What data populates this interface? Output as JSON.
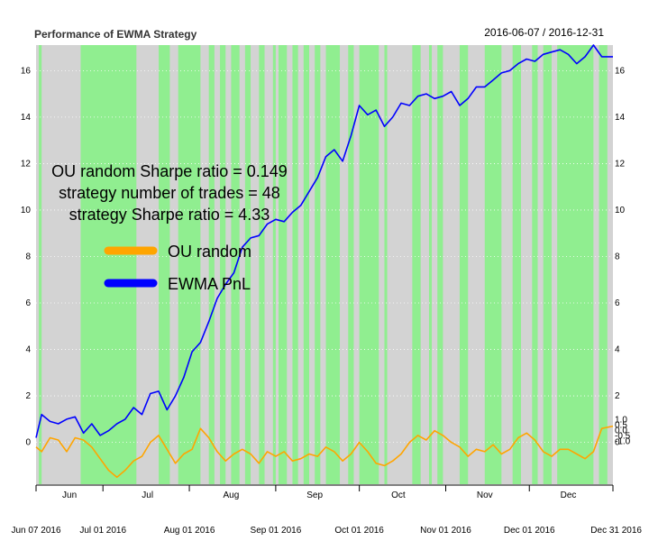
{
  "chart_data": {
    "type": "line",
    "title": "Performance of EWMA Strategy",
    "date_range": "2016-06-07 / 2016-12-31",
    "ylim": [
      -1.8,
      17.1
    ],
    "y_ticks": [
      0,
      2,
      4,
      6,
      8,
      10,
      12,
      14,
      16
    ],
    "x_range": [
      "2016-06-07",
      "2016-12-31"
    ],
    "month_labels": [
      {
        "label": "Jun",
        "date": "2016-06-19"
      },
      {
        "label": "Jul",
        "date": "2016-07-17"
      },
      {
        "label": "Aug",
        "date": "2016-08-16"
      },
      {
        "label": "Sep",
        "date": "2016-09-15"
      },
      {
        "label": "Oct",
        "date": "2016-10-15"
      },
      {
        "label": "Nov",
        "date": "2016-11-15"
      },
      {
        "label": "Dec",
        "date": "2016-12-15"
      }
    ],
    "date_ticks": [
      {
        "label": "Jun 07 2016",
        "date": "2016-06-07"
      },
      {
        "label": "Jul 01 2016",
        "date": "2016-07-01"
      },
      {
        "label": "Aug 01 2016",
        "date": "2016-08-01"
      },
      {
        "label": "Sep 01 2016",
        "date": "2016-09-01"
      },
      {
        "label": "Oct 01 2016",
        "date": "2016-10-01"
      },
      {
        "label": "Nov 01 2016",
        "date": "2016-11-01"
      },
      {
        "label": "Dec 01 2016",
        "date": "2016-12-01"
      },
      {
        "label": "Dec 31 2016",
        "date": "2016-12-31"
      }
    ],
    "right_axis_small_labels": [
      "1.0",
      "0.5",
      "0.0",
      "-0.5",
      "-1.0"
    ],
    "annotations": [
      "OU random Sharpe ratio = 0.149",
      "strategy number of trades = 48",
      "strategy Sharpe ratio = 4.33"
    ],
    "legend": {
      "placement": "center-left"
    },
    "background": {
      "long_color": "#90ee90",
      "short_color": "#d3d3d3"
    },
    "long_periods": [
      [
        "2016-06-08",
        "2016-06-09"
      ],
      [
        "2016-06-23",
        "2016-07-13"
      ],
      [
        "2016-07-21",
        "2016-07-25"
      ],
      [
        "2016-07-28",
        "2016-08-05"
      ],
      [
        "2016-08-08",
        "2016-08-10"
      ],
      [
        "2016-08-12",
        "2016-08-14"
      ],
      [
        "2016-08-16",
        "2016-08-19"
      ],
      [
        "2016-08-21",
        "2016-08-23"
      ],
      [
        "2016-08-26",
        "2016-08-28"
      ],
      [
        "2016-08-31",
        "2016-09-01"
      ],
      [
        "2016-09-02",
        "2016-09-05"
      ],
      [
        "2016-09-07",
        "2016-09-09"
      ],
      [
        "2016-09-11",
        "2016-09-13"
      ],
      [
        "2016-09-15",
        "2016-09-17"
      ],
      [
        "2016-09-19",
        "2016-09-24"
      ],
      [
        "2016-09-27",
        "2016-09-29"
      ],
      [
        "2016-10-01",
        "2016-10-08"
      ],
      [
        "2016-10-10",
        "2016-10-11"
      ],
      [
        "2016-10-20",
        "2016-10-23"
      ],
      [
        "2016-10-26",
        "2016-10-27"
      ],
      [
        "2016-10-29",
        "2016-10-31"
      ],
      [
        "2016-11-06",
        "2016-11-09"
      ],
      [
        "2016-11-15",
        "2016-11-21"
      ],
      [
        "2016-11-25",
        "2016-11-28"
      ],
      [
        "2016-12-02",
        "2016-12-04"
      ],
      [
        "2016-12-06",
        "2016-12-09"
      ],
      [
        "2016-12-11",
        "2016-12-24"
      ],
      [
        "2016-12-26",
        "2016-12-29"
      ]
    ],
    "series": [
      {
        "name": "OU random",
        "color": "#ffa500",
        "x": [
          "2016-06-07",
          "2016-06-09",
          "2016-06-12",
          "2016-06-15",
          "2016-06-18",
          "2016-06-21",
          "2016-06-24",
          "2016-06-27",
          "2016-06-30",
          "2016-07-03",
          "2016-07-06",
          "2016-07-09",
          "2016-07-12",
          "2016-07-15",
          "2016-07-18",
          "2016-07-21",
          "2016-07-24",
          "2016-07-27",
          "2016-07-30",
          "2016-08-02",
          "2016-08-05",
          "2016-08-08",
          "2016-08-11",
          "2016-08-14",
          "2016-08-17",
          "2016-08-20",
          "2016-08-23",
          "2016-08-26",
          "2016-08-29",
          "2016-09-01",
          "2016-09-04",
          "2016-09-07",
          "2016-09-10",
          "2016-09-13",
          "2016-09-16",
          "2016-09-19",
          "2016-09-22",
          "2016-09-25",
          "2016-09-28",
          "2016-10-01",
          "2016-10-04",
          "2016-10-07",
          "2016-10-10",
          "2016-10-13",
          "2016-10-16",
          "2016-10-19",
          "2016-10-22",
          "2016-10-25",
          "2016-10-28",
          "2016-10-31",
          "2016-11-03",
          "2016-11-06",
          "2016-11-09",
          "2016-11-12",
          "2016-11-15",
          "2016-11-18",
          "2016-11-21",
          "2016-11-24",
          "2016-11-27",
          "2016-11-30",
          "2016-12-03",
          "2016-12-06",
          "2016-12-09",
          "2016-12-12",
          "2016-12-15",
          "2016-12-18",
          "2016-12-21",
          "2016-12-24",
          "2016-12-27",
          "2016-12-31"
        ],
        "values": [
          -0.2,
          -0.4,
          0.2,
          0.1,
          -0.4,
          0.2,
          0.1,
          -0.2,
          -0.7,
          -1.2,
          -1.5,
          -1.2,
          -0.8,
          -0.6,
          0.0,
          0.3,
          -0.3,
          -0.9,
          -0.5,
          -0.3,
          0.6,
          0.2,
          -0.4,
          -0.8,
          -0.5,
          -0.3,
          -0.5,
          -0.9,
          -0.4,
          -0.6,
          -0.4,
          -0.8,
          -0.7,
          -0.5,
          -0.6,
          -0.2,
          -0.4,
          -0.8,
          -0.5,
          0.0,
          -0.4,
          -0.9,
          -1.0,
          -0.8,
          -0.5,
          0.0,
          0.3,
          0.1,
          0.5,
          0.3,
          0.0,
          -0.2,
          -0.6,
          -0.3,
          -0.4,
          -0.1,
          -0.5,
          -0.3,
          0.2,
          0.4,
          0.1,
          -0.4,
          -0.6,
          -0.3,
          -0.3,
          -0.5,
          -0.7,
          -0.4,
          0.6,
          0.7
        ]
      },
      {
        "name": "EWMA PnL",
        "color": "#0000ff",
        "x": [
          "2016-06-07",
          "2016-06-09",
          "2016-06-12",
          "2016-06-15",
          "2016-06-18",
          "2016-06-21",
          "2016-06-24",
          "2016-06-27",
          "2016-06-30",
          "2016-07-03",
          "2016-07-06",
          "2016-07-09",
          "2016-07-12",
          "2016-07-15",
          "2016-07-18",
          "2016-07-21",
          "2016-07-24",
          "2016-07-27",
          "2016-07-30",
          "2016-08-02",
          "2016-08-05",
          "2016-08-08",
          "2016-08-11",
          "2016-08-14",
          "2016-08-17",
          "2016-08-20",
          "2016-08-23",
          "2016-08-26",
          "2016-08-29",
          "2016-09-01",
          "2016-09-04",
          "2016-09-07",
          "2016-09-10",
          "2016-09-13",
          "2016-09-16",
          "2016-09-19",
          "2016-09-22",
          "2016-09-25",
          "2016-09-28",
          "2016-10-01",
          "2016-10-04",
          "2016-10-07",
          "2016-10-10",
          "2016-10-13",
          "2016-10-16",
          "2016-10-19",
          "2016-10-22",
          "2016-10-25",
          "2016-10-28",
          "2016-10-31",
          "2016-11-03",
          "2016-11-06",
          "2016-11-09",
          "2016-11-12",
          "2016-11-15",
          "2016-11-18",
          "2016-11-21",
          "2016-11-24",
          "2016-11-27",
          "2016-11-30",
          "2016-12-03",
          "2016-12-06",
          "2016-12-09",
          "2016-12-12",
          "2016-12-15",
          "2016-12-18",
          "2016-12-21",
          "2016-12-24",
          "2016-12-27",
          "2016-12-31"
        ],
        "values": [
          0.2,
          1.2,
          0.9,
          0.8,
          1.0,
          1.1,
          0.4,
          0.8,
          0.3,
          0.5,
          0.8,
          1.0,
          1.5,
          1.2,
          2.1,
          2.2,
          1.4,
          2.0,
          2.8,
          3.9,
          4.3,
          5.2,
          6.2,
          6.8,
          7.3,
          8.4,
          8.8,
          8.9,
          9.4,
          9.6,
          9.5,
          9.9,
          10.2,
          10.8,
          11.4,
          12.3,
          12.6,
          12.1,
          13.2,
          14.5,
          14.1,
          14.3,
          13.6,
          14.0,
          14.6,
          14.5,
          14.9,
          15.0,
          14.8,
          14.9,
          15.1,
          14.5,
          14.8,
          15.3,
          15.3,
          15.6,
          15.9,
          16.0,
          16.3,
          16.5,
          16.4,
          16.7,
          16.8,
          16.9,
          16.7,
          16.3,
          16.6,
          17.1,
          16.6,
          16.6
        ]
      }
    ]
  }
}
